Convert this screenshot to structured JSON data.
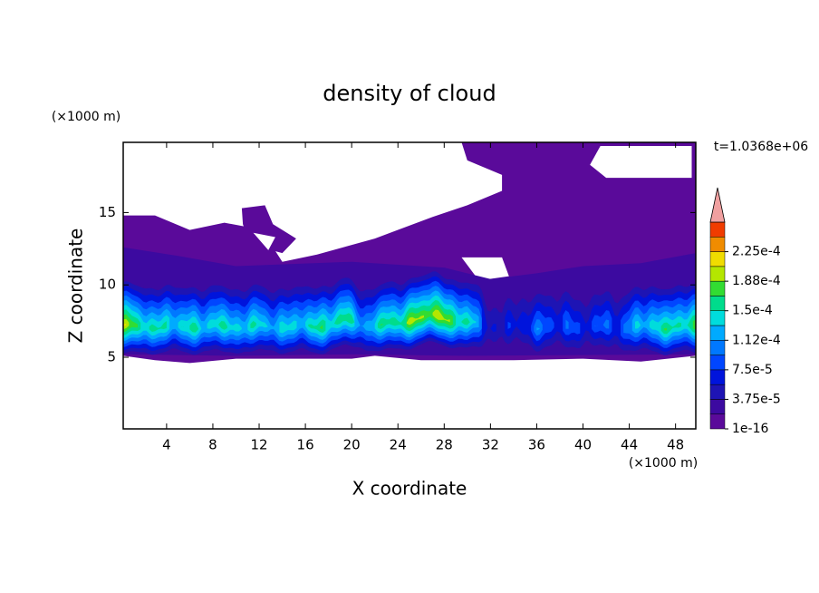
{
  "chart_data": {
    "type": "contour",
    "title": "density of cloud",
    "xlabel": "X coordinate",
    "ylabel": "Z coordinate",
    "x_unit": "(×1000 m)",
    "y_unit": "(×1000 m)",
    "annotation": "t=1.0368e+06",
    "xlim": [
      0.25,
      49.75
    ],
    "ylim": [
      0.05,
      19.85
    ],
    "xticks": [
      4,
      8,
      12,
      16,
      20,
      24,
      28,
      32,
      36,
      40,
      44,
      48
    ],
    "yticks": [
      5,
      10,
      15
    ],
    "colorbar": {
      "levels": [
        1e-16,
        1.875e-05,
        3.75e-05,
        5.625e-05,
        7.5e-05,
        9.375e-05,
        0.0001125,
        0.00013125,
        0.00015,
        0.00016875,
        0.0001875,
        0.00020625,
        0.000225,
        0.00024375
      ],
      "colors": [
        "#5a0a9a",
        "#3c0aa0",
        "#1e14b4",
        "#0014dc",
        "#0046ff",
        "#0078ff",
        "#00aaff",
        "#00dcdc",
        "#00dc8c",
        "#32dc32",
        "#b4e600",
        "#f0dc00",
        "#f08c00",
        "#f03c00"
      ],
      "overflow_color": "#f0a0a0",
      "ticks": [
        {
          "value": 1e-16,
          "label": "1e-16"
        },
        {
          "value": 3.75e-05,
          "label": "3.75e-5"
        },
        {
          "value": 7.5e-05,
          "label": "7.5e-5"
        },
        {
          "value": 0.0001125,
          "label": "1.12e-4"
        },
        {
          "value": 0.00015,
          "label": "1.5e-4"
        },
        {
          "value": 0.0001875,
          "label": "1.88e-4"
        },
        {
          "value": 0.000225,
          "label": "2.25e-4"
        }
      ]
    }
  }
}
